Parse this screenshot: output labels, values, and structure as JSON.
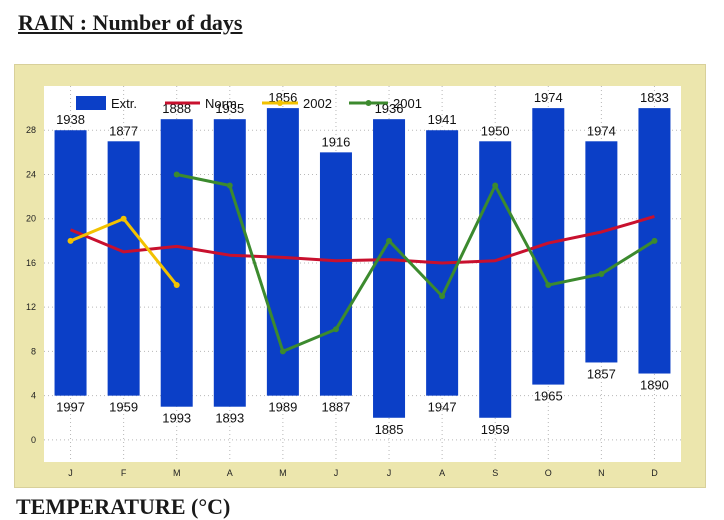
{
  "page": {
    "heading": "RAIN : Number of  days",
    "footer_heading": "TEMPERATURE  (°C)"
  },
  "chart_data": {
    "type": "bar",
    "title": "",
    "xlabel": "",
    "ylabel": "",
    "ylim": [
      -2,
      32
    ],
    "yticks": [
      0,
      4,
      8,
      12,
      16,
      20,
      24,
      28
    ],
    "grid": true,
    "legend_position": "top-left",
    "categories": [
      "J",
      "F",
      "M",
      "A",
      "M",
      "J",
      "J",
      "A",
      "S",
      "O",
      "N",
      "D"
    ],
    "extremes": {
      "name": "Extr.",
      "color": "#0b3fc7",
      "max": [
        28,
        27,
        29,
        29,
        30,
        26,
        29,
        28,
        27,
        30,
        27,
        30
      ],
      "min": [
        4,
        4,
        3,
        3,
        4,
        4,
        2,
        4,
        2,
        5,
        7,
        6
      ],
      "max_years": [
        "1938",
        "1877",
        "1888",
        "1935",
        "1856",
        "1916",
        "1936",
        "1941",
        "1950",
        "1974",
        "1974",
        "1833"
      ],
      "min_years": [
        "1997",
        "1959",
        "1993",
        "1893",
        "1989",
        "1887",
        "1885",
        "1947",
        "1959",
        "1965",
        "1857",
        "1890"
      ]
    },
    "series": [
      {
        "name": "Norm.",
        "color": "#c8102e",
        "values": [
          19,
          17,
          17.5,
          16.7,
          16.5,
          16.2,
          16.3,
          16,
          16.2,
          17.8,
          18.8,
          20.2
        ]
      },
      {
        "name": "2002",
        "color": "#f2c200",
        "values": [
          18,
          20,
          14,
          null,
          null,
          null,
          null,
          null,
          null,
          null,
          null,
          null
        ]
      },
      {
        "name": "2001",
        "color": "#3c8a2e",
        "values": [
          null,
          null,
          24,
          23,
          8,
          10,
          18,
          13,
          23,
          14,
          15,
          18
        ]
      }
    ]
  }
}
